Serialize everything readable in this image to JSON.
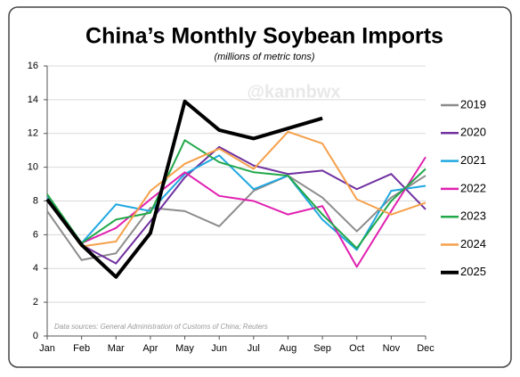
{
  "chart_data": {
    "type": "line",
    "title": "China’s Monthly Soybean Imports",
    "subtitle": "(millions of metric tons)",
    "annotations": [
      "@kannbwx",
      "Data sources: General Administration of Customs of China; Reuters"
    ],
    "categories": [
      "Jan",
      "Feb",
      "Mar",
      "Apr",
      "May",
      "Jun",
      "Jul",
      "Aug",
      "Sep",
      "Oct",
      "Nov",
      "Dec"
    ],
    "ylim": [
      0,
      16
    ],
    "yticks": [
      0,
      2,
      4,
      6,
      8,
      10,
      12,
      14,
      16
    ],
    "grid": true,
    "legend": "right",
    "series": [
      {
        "name": "2019",
        "color": "#8c8c8c",
        "values": [
          7.4,
          4.5,
          4.9,
          7.6,
          7.4,
          6.5,
          8.6,
          9.5,
          8.2,
          6.2,
          8.2,
          9.5
        ]
      },
      {
        "name": "2020",
        "color": "#7030a0",
        "values": [
          8.0,
          5.4,
          4.3,
          6.8,
          9.4,
          11.2,
          10.1,
          9.6,
          9.8,
          8.7,
          9.6,
          7.5
        ]
      },
      {
        "name": "2021",
        "color": "#1fa8e0",
        "values": [
          8.2,
          5.5,
          7.8,
          7.4,
          9.6,
          10.7,
          8.7,
          9.5,
          6.9,
          5.1,
          8.6,
          8.9
        ]
      },
      {
        "name": "2022",
        "color": "#e020b0",
        "values": [
          8.1,
          5.5,
          6.4,
          8.1,
          9.7,
          8.3,
          8.0,
          7.2,
          7.7,
          4.1,
          7.4,
          10.6
        ]
      },
      {
        "name": "2023",
        "color": "#22a84a",
        "values": [
          8.4,
          5.5,
          6.9,
          7.3,
          11.6,
          10.3,
          9.7,
          9.5,
          7.2,
          5.2,
          8.0,
          9.9
        ]
      },
      {
        "name": "2024",
        "color": "#f5a04a",
        "values": [
          8.1,
          5.3,
          5.6,
          8.6,
          10.2,
          11.1,
          9.9,
          12.1,
          11.4,
          8.1,
          7.2,
          7.9
        ]
      },
      {
        "name": "2025",
        "color": "#000000",
        "values": [
          8.1,
          5.4,
          3.5,
          6.1,
          13.9,
          12.2,
          11.7,
          12.3,
          12.9,
          null,
          null,
          null
        ]
      }
    ]
  }
}
